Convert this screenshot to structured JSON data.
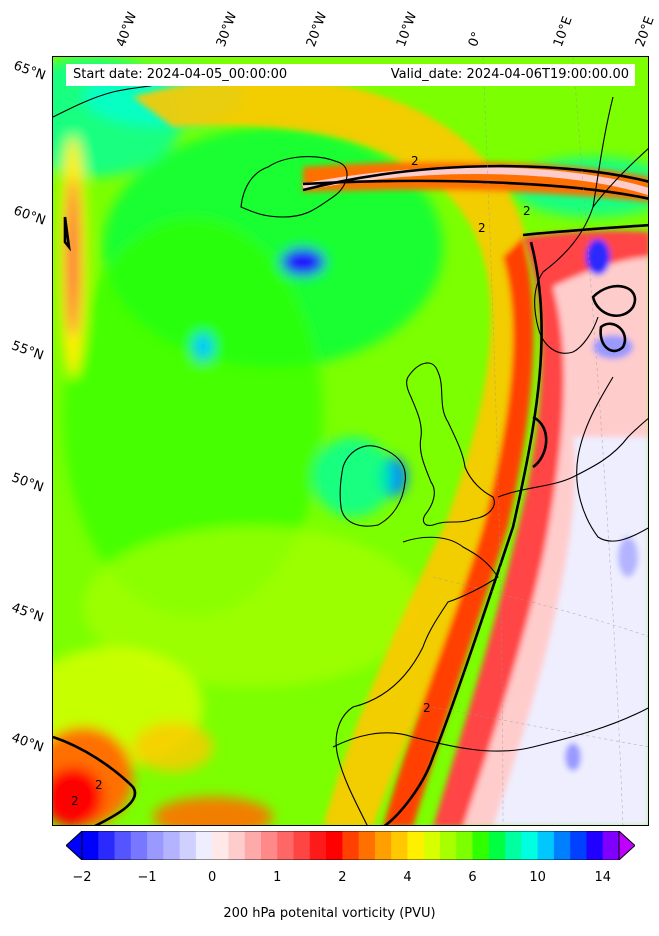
{
  "info": {
    "start": "Start date: 2024-04-05_00:00:00",
    "valid": "Valid_date: 2024-04-06T19:00:00.00"
  },
  "lat_labels": [
    "65°N",
    "60°N",
    "55°N",
    "50°N",
    "45°N",
    "40°N"
  ],
  "lon_labels": [
    "40°W",
    "30°W",
    "20°W",
    "10°W",
    "0°",
    "10°E",
    "20°E"
  ],
  "contour_label": "2",
  "colorbar": {
    "ticks": [
      "−2",
      "−1",
      "0",
      "1",
      "2",
      "4",
      "6",
      "10",
      "14"
    ],
    "label": "200 hPa potenital vorticity (PVU)",
    "colors": [
      "#0000ff",
      "#2a2aff",
      "#5555ff",
      "#7777ff",
      "#9999ff",
      "#b3b3ff",
      "#d0d0ff",
      "#eeeeff",
      "#ffe8e8",
      "#ffcccc",
      "#ffaaaa",
      "#ff8888",
      "#ff6666",
      "#ff4444",
      "#ff1a1a",
      "#ff0000",
      "#ff4000",
      "#ff7000",
      "#ffa000",
      "#ffc800",
      "#fff000",
      "#d8ff00",
      "#a8ff00",
      "#7cff00",
      "#30ff00",
      "#00ff40",
      "#00ffa0",
      "#00ffe0",
      "#00c8ff",
      "#0080ff",
      "#0040ff",
      "#2000ff",
      "#8000ff"
    ],
    "under_color": "#0000ff",
    "over_color": "#c000ff"
  }
}
